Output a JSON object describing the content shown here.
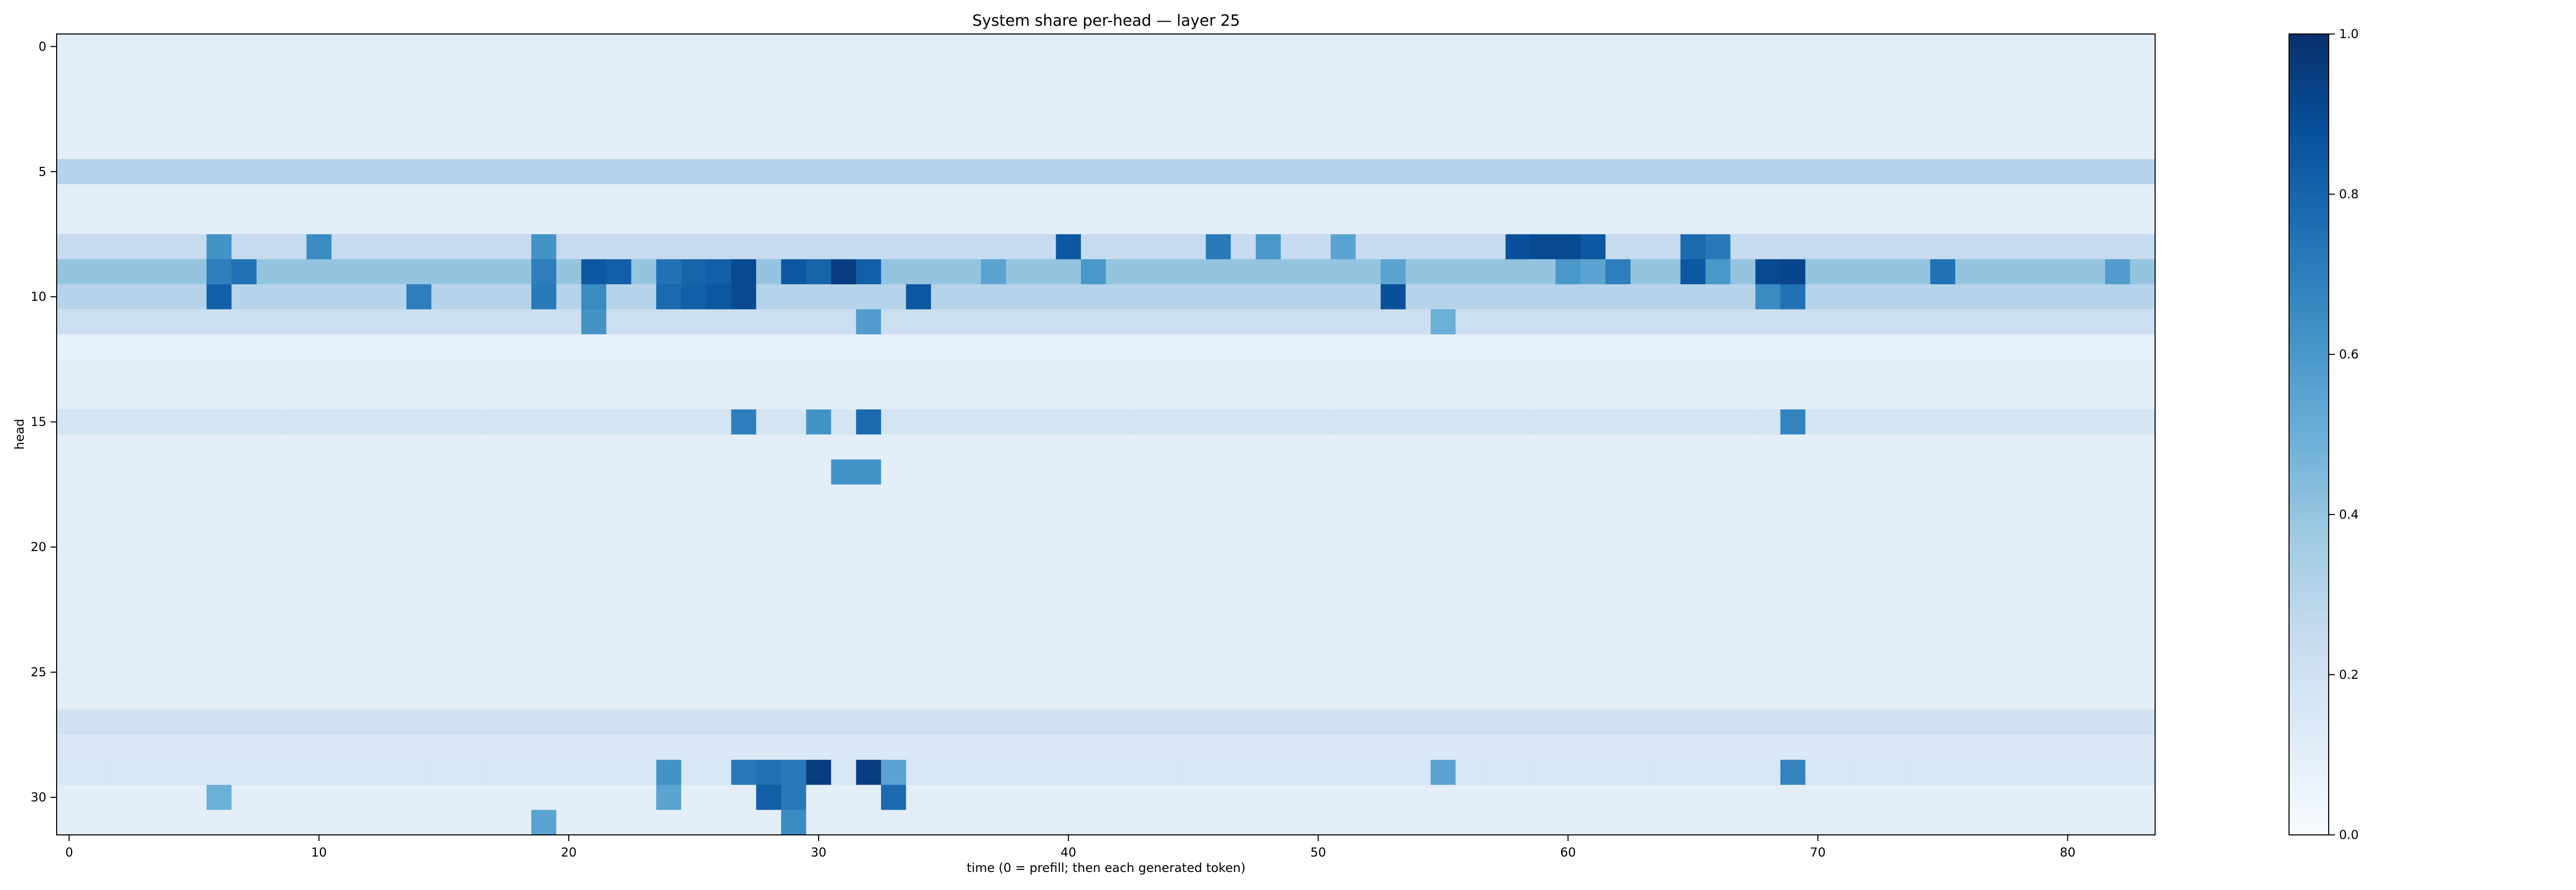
{
  "chart_data": {
    "type": "heatmap",
    "title": "System share per-head — layer 25",
    "xlabel": "time (0 = prefill; then each generated token)",
    "ylabel": "head",
    "n_cols": 84,
    "n_rows": 32,
    "x_ticks": [
      0,
      10,
      20,
      30,
      40,
      50,
      60,
      70,
      80
    ],
    "y_ticks": [
      0,
      5,
      10,
      15,
      20,
      25,
      30
    ],
    "colormap": "Blues",
    "vmin": 0.0,
    "vmax": 1.0,
    "colorbar_ticks": [
      "0.0",
      "0.2",
      "0.4",
      "0.6",
      "0.8",
      "1.0"
    ],
    "baseline_value": 0.1,
    "row_levels": [
      {
        "head": 5,
        "value": 0.3
      },
      {
        "head": 8,
        "value": 0.25
      },
      {
        "head": 9,
        "value": 0.4
      },
      {
        "head": 10,
        "value": 0.3
      },
      {
        "head": 11,
        "value": 0.22
      },
      {
        "head": 12,
        "value": 0.08
      },
      {
        "head": 15,
        "value": 0.18
      },
      {
        "head": 27,
        "value": 0.2
      },
      {
        "head": 28,
        "value": 0.14
      },
      {
        "head": 29,
        "value": 0.16
      }
    ],
    "highlight_cells": [
      {
        "head": 8,
        "t": 6,
        "v": 0.62
      },
      {
        "head": 8,
        "t": 10,
        "v": 0.65
      },
      {
        "head": 8,
        "t": 19,
        "v": 0.62
      },
      {
        "head": 8,
        "t": 40,
        "v": 0.85
      },
      {
        "head": 8,
        "t": 46,
        "v": 0.72
      },
      {
        "head": 8,
        "t": 48,
        "v": 0.6
      },
      {
        "head": 8,
        "t": 51,
        "v": 0.55
      },
      {
        "head": 8,
        "t": 58,
        "v": 0.88
      },
      {
        "head": 8,
        "t": 59,
        "v": 0.9
      },
      {
        "head": 8,
        "t": 60,
        "v": 0.9
      },
      {
        "head": 8,
        "t": 61,
        "v": 0.85
      },
      {
        "head": 8,
        "t": 65,
        "v": 0.78
      },
      {
        "head": 8,
        "t": 66,
        "v": 0.72
      },
      {
        "head": 9,
        "t": 6,
        "v": 0.7
      },
      {
        "head": 9,
        "t": 7,
        "v": 0.75
      },
      {
        "head": 9,
        "t": 19,
        "v": 0.7
      },
      {
        "head": 9,
        "t": 21,
        "v": 0.85
      },
      {
        "head": 9,
        "t": 22,
        "v": 0.82
      },
      {
        "head": 9,
        "t": 24,
        "v": 0.75
      },
      {
        "head": 9,
        "t": 25,
        "v": 0.8
      },
      {
        "head": 9,
        "t": 26,
        "v": 0.82
      },
      {
        "head": 9,
        "t": 27,
        "v": 0.9
      },
      {
        "head": 9,
        "t": 29,
        "v": 0.85
      },
      {
        "head": 9,
        "t": 30,
        "v": 0.8
      },
      {
        "head": 9,
        "t": 31,
        "v": 0.95
      },
      {
        "head": 9,
        "t": 32,
        "v": 0.82
      },
      {
        "head": 9,
        "t": 37,
        "v": 0.55
      },
      {
        "head": 9,
        "t": 41,
        "v": 0.6
      },
      {
        "head": 9,
        "t": 53,
        "v": 0.55
      },
      {
        "head": 9,
        "t": 60,
        "v": 0.6
      },
      {
        "head": 9,
        "t": 61,
        "v": 0.55
      },
      {
        "head": 9,
        "t": 62,
        "v": 0.7
      },
      {
        "head": 9,
        "t": 65,
        "v": 0.85
      },
      {
        "head": 9,
        "t": 66,
        "v": 0.6
      },
      {
        "head": 9,
        "t": 68,
        "v": 0.9
      },
      {
        "head": 9,
        "t": 69,
        "v": 0.92
      },
      {
        "head": 9,
        "t": 75,
        "v": 0.75
      },
      {
        "head": 9,
        "t": 82,
        "v": 0.58
      },
      {
        "head": 10,
        "t": 6,
        "v": 0.82
      },
      {
        "head": 10,
        "t": 14,
        "v": 0.7
      },
      {
        "head": 10,
        "t": 19,
        "v": 0.72
      },
      {
        "head": 10,
        "t": 21,
        "v": 0.65
      },
      {
        "head": 10,
        "t": 24,
        "v": 0.78
      },
      {
        "head": 10,
        "t": 25,
        "v": 0.82
      },
      {
        "head": 10,
        "t": 26,
        "v": 0.85
      },
      {
        "head": 10,
        "t": 27,
        "v": 0.9
      },
      {
        "head": 10,
        "t": 34,
        "v": 0.85
      },
      {
        "head": 10,
        "t": 53,
        "v": 0.88
      },
      {
        "head": 10,
        "t": 68,
        "v": 0.65
      },
      {
        "head": 10,
        "t": 69,
        "v": 0.75
      },
      {
        "head": 11,
        "t": 21,
        "v": 0.62
      },
      {
        "head": 11,
        "t": 32,
        "v": 0.58
      },
      {
        "head": 11,
        "t": 55,
        "v": 0.5
      },
      {
        "head": 15,
        "t": 27,
        "v": 0.7
      },
      {
        "head": 15,
        "t": 30,
        "v": 0.62
      },
      {
        "head": 15,
        "t": 32,
        "v": 0.78
      },
      {
        "head": 15,
        "t": 69,
        "v": 0.68
      },
      {
        "head": 17,
        "t": 31,
        "v": 0.62
      },
      {
        "head": 17,
        "t": 32,
        "v": 0.62
      },
      {
        "head": 29,
        "t": 24,
        "v": 0.62
      },
      {
        "head": 29,
        "t": 27,
        "v": 0.72
      },
      {
        "head": 29,
        "t": 28,
        "v": 0.75
      },
      {
        "head": 29,
        "t": 29,
        "v": 0.72
      },
      {
        "head": 29,
        "t": 30,
        "v": 0.95
      },
      {
        "head": 29,
        "t": 32,
        "v": 0.95
      },
      {
        "head": 29,
        "t": 33,
        "v": 0.55
      },
      {
        "head": 29,
        "t": 55,
        "v": 0.55
      },
      {
        "head": 29,
        "t": 69,
        "v": 0.68
      },
      {
        "head": 30,
        "t": 6,
        "v": 0.5
      },
      {
        "head": 30,
        "t": 24,
        "v": 0.55
      },
      {
        "head": 30,
        "t": 28,
        "v": 0.82
      },
      {
        "head": 30,
        "t": 29,
        "v": 0.72
      },
      {
        "head": 30,
        "t": 33,
        "v": 0.78
      },
      {
        "head": 31,
        "t": 19,
        "v": 0.55
      },
      {
        "head": 31,
        "t": 29,
        "v": 0.65
      }
    ]
  }
}
